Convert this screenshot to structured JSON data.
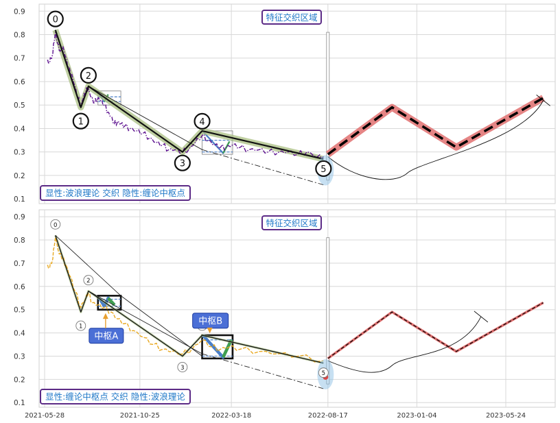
{
  "chart_data": [
    {
      "type": "line",
      "title": "",
      "xlabel": "",
      "ylabel": "",
      "ylim": [
        0.08,
        0.93
      ],
      "y_ticks": [
        "0.1",
        "0.2",
        "0.3",
        "0.4",
        "0.5",
        "0.6",
        "0.7",
        "0.8",
        "0.9"
      ],
      "grid": true,
      "annotation_top": "特征交织区域",
      "annotation_bottom": "显性:波浪理论 交织 隐性:缠论中枢点",
      "wave_points": [
        {
          "label": "0",
          "date": "2021-06-14",
          "value": 0.82
        },
        {
          "label": "1",
          "date": "2021-07-24",
          "value": 0.49
        },
        {
          "label": "2",
          "date": "2021-08-05",
          "value": 0.58
        },
        {
          "label": "3",
          "date": "2021-12-31",
          "value": 0.3
        },
        {
          "label": "4",
          "date": "2022-01-31",
          "value": 0.39
        },
        {
          "label": "5",
          "date": "2022-08-10",
          "value": 0.27
        }
      ],
      "series": [
        {
          "values": [
            [
              "2021-06-01",
              0.69
            ],
            [
              "2021-06-05",
              0.68
            ],
            [
              "2021-06-10",
              0.72
            ],
            [
              "2021-06-14",
              0.81
            ],
            [
              "2021-06-18",
              0.76
            ],
            [
              "2021-06-22",
              0.73
            ],
            [
              "2021-06-26",
              0.75
            ],
            [
              "2021-07-01",
              0.7
            ],
            [
              "2021-07-05",
              0.66
            ],
            [
              "2021-07-10",
              0.63
            ],
            [
              "2021-07-15",
              0.58
            ],
            [
              "2021-07-20",
              0.53
            ],
            [
              "2021-07-24",
              0.5
            ],
            [
              "2021-07-28",
              0.53
            ],
            [
              "2021-08-01",
              0.56
            ],
            [
              "2021-08-05",
              0.57
            ],
            [
              "2021-08-10",
              0.53
            ],
            [
              "2021-08-15",
              0.51
            ],
            [
              "2021-08-20",
              0.53
            ],
            [
              "2021-08-25",
              0.52
            ],
            [
              "2021-08-30",
              0.5
            ],
            [
              "2021-09-05",
              0.47
            ],
            [
              "2021-09-10",
              0.45
            ],
            [
              "2021-09-15",
              0.42
            ],
            [
              "2021-09-20",
              0.43
            ],
            [
              "2021-09-25",
              0.42
            ],
            [
              "2021-10-01",
              0.41
            ],
            [
              "2021-10-10",
              0.4
            ],
            [
              "2021-10-20",
              0.39
            ],
            [
              "2021-10-30",
              0.38
            ],
            [
              "2021-11-10",
              0.36
            ],
            [
              "2021-11-20",
              0.34
            ],
            [
              "2021-11-30",
              0.33
            ],
            [
              "2021-12-10",
              0.31
            ],
            [
              "2021-12-20",
              0.31
            ],
            [
              "2021-12-31",
              0.3
            ],
            [
              "2022-01-10",
              0.31
            ],
            [
              "2022-01-20",
              0.34
            ],
            [
              "2022-01-31",
              0.37
            ],
            [
              "2022-02-10",
              0.35
            ],
            [
              "2022-02-20",
              0.33
            ],
            [
              "2022-03-01",
              0.32
            ],
            [
              "2022-03-10",
              0.32
            ],
            [
              "2022-03-20",
              0.33
            ],
            [
              "2022-04-01",
              0.32
            ],
            [
              "2022-04-15",
              0.31
            ],
            [
              "2022-05-01",
              0.31
            ],
            [
              "2022-05-15",
              0.3
            ],
            [
              "2022-06-01",
              0.3
            ],
            [
              "2022-06-15",
              0.3
            ],
            [
              "2022-07-01",
              0.29
            ],
            [
              "2022-07-15",
              0.3
            ],
            [
              "2022-08-01",
              0.28
            ],
            [
              "2022-08-10",
              0.28
            ]
          ]
        },
        {
          "values": [
            [
              "2021-06-14",
              0.82
            ],
            [
              "2021-07-24",
              0.49
            ],
            [
              "2021-08-05",
              0.58
            ],
            [
              "2021-12-31",
              0.3
            ],
            [
              "2022-01-31",
              0.39
            ],
            [
              "2022-08-10",
              0.27
            ]
          ]
        },
        {
          "values": [
            [
              "2022-08-17",
              0.29
            ],
            [
              "2022-11-26",
              0.49
            ],
            [
              "2023-03-07",
              0.32
            ],
            [
              "2023-07-22",
              0.53
            ]
          ]
        }
      ],
      "zones": [
        {
          "x": [
            "2021-08-20",
            "2021-09-25"
          ],
          "y": [
            0.5,
            0.56
          ]
        },
        {
          "x": [
            "2022-01-31",
            "2022-03-20"
          ],
          "y": [
            0.29,
            0.39
          ]
        }
      ],
      "center_segments": [
        {
          "x": [
            "2021-08-20",
            "2021-09-25"
          ],
          "y": 0.535
        },
        {
          "x": [
            "2021-08-20",
            "2021-09-25"
          ],
          "y": 0.515
        },
        {
          "x": [
            "2022-01-31",
            "2022-03-20"
          ],
          "y": 0.35
        },
        {
          "x": [
            "2022-01-31",
            "2022-03-20"
          ],
          "y": 0.3
        }
      ],
      "center_strokes": [
        [
          [
            "2021-08-22",
            0.545
          ],
          [
            "2021-08-30",
            0.515
          ],
          [
            "2021-09-05",
            0.545
          ]
        ],
        [
          [
            "2022-02-02",
            0.385
          ],
          [
            "2022-03-05",
            0.295
          ],
          [
            "2022-03-15",
            0.345
          ]
        ]
      ],
      "trend_lines": [
        [
          [
            "2021-08-05",
            0.58
          ],
          [
            "2022-01-31",
            0.31
          ]
        ],
        [
          [
            "2022-01-31",
            0.31
          ],
          [
            "2022-08-10",
            0.16
          ]
        ]
      ],
      "mark": {
        "date": "2022-08-10",
        "value": 0.21
      },
      "arc": {
        "start": [
          "2022-08-17",
          0.28
        ],
        "min": [
          "2022-12-20",
          0.21
        ],
        "end": [
          "2023-07-22",
          0.52
        ]
      },
      "divider_date": "2022-08-17"
    },
    {
      "type": "line",
      "title": "",
      "xlabel": "",
      "ylabel": "",
      "ylim": [
        0.08,
        0.93
      ],
      "y_ticks": [
        "0.1",
        "0.2",
        "0.3",
        "0.4",
        "0.5",
        "0.6",
        "0.7",
        "0.8",
        "0.9"
      ],
      "x_ticks": [
        "2021-05-28",
        "2021-10-25",
        "2022-03-18",
        "2022-08-17",
        "2023-01-04",
        "2023-05-24"
      ],
      "grid": true,
      "annotation_top": "特征交织区域",
      "annotation_bottom": "显性:缠论中枢点 交织 隐性:波浪理论",
      "center_labels": [
        "中枢A",
        "中枢B"
      ],
      "wave_points": [
        {
          "label": "0",
          "date": "2021-06-14",
          "value": 0.82
        },
        {
          "label": "1",
          "date": "2021-07-24",
          "value": 0.49
        },
        {
          "label": "2",
          "date": "2021-08-05",
          "value": 0.58
        },
        {
          "label": "3",
          "date": "2021-12-31",
          "value": 0.3
        },
        {
          "label": "4",
          "date": "2022-01-31",
          "value": 0.39
        },
        {
          "label": "5",
          "date": "2022-08-10",
          "value": 0.27
        }
      ],
      "series": [
        {
          "values": [
            [
              "2021-06-01",
              0.69
            ],
            [
              "2021-06-05",
              0.68
            ],
            [
              "2021-06-10",
              0.72
            ],
            [
              "2021-06-14",
              0.81
            ],
            [
              "2021-06-20",
              0.74
            ],
            [
              "2021-06-26",
              0.72
            ],
            [
              "2021-07-01",
              0.69
            ],
            [
              "2021-07-08",
              0.64
            ],
            [
              "2021-07-15",
              0.58
            ],
            [
              "2021-07-24",
              0.51
            ],
            [
              "2021-08-01",
              0.55
            ],
            [
              "2021-08-05",
              0.57
            ],
            [
              "2021-08-12",
              0.53
            ],
            [
              "2021-08-20",
              0.52
            ],
            [
              "2021-08-30",
              0.51
            ],
            [
              "2021-09-10",
              0.49
            ],
            [
              "2021-09-20",
              0.46
            ],
            [
              "2021-10-01",
              0.44
            ],
            [
              "2021-10-15",
              0.41
            ],
            [
              "2021-11-01",
              0.38
            ],
            [
              "2021-11-15",
              0.35
            ],
            [
              "2021-12-01",
              0.33
            ],
            [
              "2021-12-15",
              0.32
            ],
            [
              "2021-12-31",
              0.31
            ],
            [
              "2022-01-15",
              0.33
            ],
            [
              "2022-01-31",
              0.37
            ],
            [
              "2022-02-15",
              0.34
            ],
            [
              "2022-03-01",
              0.33
            ],
            [
              "2022-03-15",
              0.34
            ],
            [
              "2022-04-01",
              0.33
            ],
            [
              "2022-05-01",
              0.32
            ],
            [
              "2022-06-01",
              0.31
            ],
            [
              "2022-07-01",
              0.3
            ],
            [
              "2022-08-10",
              0.28
            ]
          ]
        },
        {
          "values": [
            [
              "2021-06-14",
              0.82
            ],
            [
              "2021-07-24",
              0.49
            ],
            [
              "2021-08-05",
              0.58
            ],
            [
              "2021-12-31",
              0.3
            ],
            [
              "2022-01-31",
              0.39
            ],
            [
              "2022-08-10",
              0.27
            ]
          ]
        },
        {
          "values": [
            [
              "2022-08-17",
              0.29
            ],
            [
              "2022-11-26",
              0.49
            ],
            [
              "2023-03-07",
              0.32
            ],
            [
              "2023-07-22",
              0.53
            ]
          ]
        }
      ],
      "zones": [
        {
          "x": [
            "2021-08-20",
            "2021-09-25"
          ],
          "y": [
            0.5,
            0.56
          ]
        },
        {
          "x": [
            "2022-01-31",
            "2022-03-20"
          ],
          "y": [
            0.29,
            0.39
          ]
        }
      ],
      "center_segments": [
        {
          "x": [
            "2021-08-20",
            "2021-09-25"
          ],
          "y": 0.545
        },
        {
          "x": [
            "2021-08-20",
            "2021-09-25"
          ],
          "y": 0.515
        },
        {
          "x": [
            "2022-01-31",
            "2022-03-20"
          ],
          "y": 0.37
        },
        {
          "x": [
            "2022-01-31",
            "2022-03-20"
          ],
          "y": 0.3
        }
      ],
      "center_strokes": [
        [
          [
            "2021-08-22",
            0.55
          ],
          [
            "2021-08-30",
            0.515
          ],
          [
            "2021-09-05",
            0.55
          ],
          [
            "2021-09-15",
            0.52
          ]
        ],
        [
          [
            "2022-02-01",
            0.39
          ],
          [
            "2022-03-05",
            0.295
          ],
          [
            "2022-03-18",
            0.37
          ]
        ]
      ],
      "trend_lines": [
        [
          [
            "2021-06-14",
            0.82
          ],
          [
            "2021-09-25",
            0.56
          ],
          [
            "2022-01-31",
            0.3
          ]
        ],
        [
          [
            "2021-08-05",
            0.58
          ],
          [
            "2022-01-31",
            0.31
          ]
        ],
        [
          [
            "2022-01-31",
            0.31
          ],
          [
            "2022-08-10",
            0.16
          ]
        ]
      ],
      "mark": {
        "date": "2022-08-10",
        "value": 0.21
      },
      "arc": {
        "start": [
          "2022-08-17",
          0.28
        ],
        "min": [
          "2022-11-26",
          0.26
        ],
        "end": [
          "2023-04-15",
          0.47
        ]
      },
      "divider_date": "2022-08-17"
    }
  ],
  "colors": {
    "price_top": "#5b0f8e",
    "price_bottom": "#e8a820",
    "wave_line": "#111111",
    "wave_band": "#a9bf82",
    "forecast_band": "#e07070",
    "forecast_dash": "#000000",
    "label_border": "#5b2a86",
    "label_text": "#1f78c8",
    "center_box": "#4b6fd6",
    "mark": "#d94848",
    "halo": "#8fc1e6",
    "grid": "#d8d8d8",
    "zone_blue": "#4a7fc8",
    "zone_green": "#3f9f4f",
    "arrow": "#e8a030"
  }
}
